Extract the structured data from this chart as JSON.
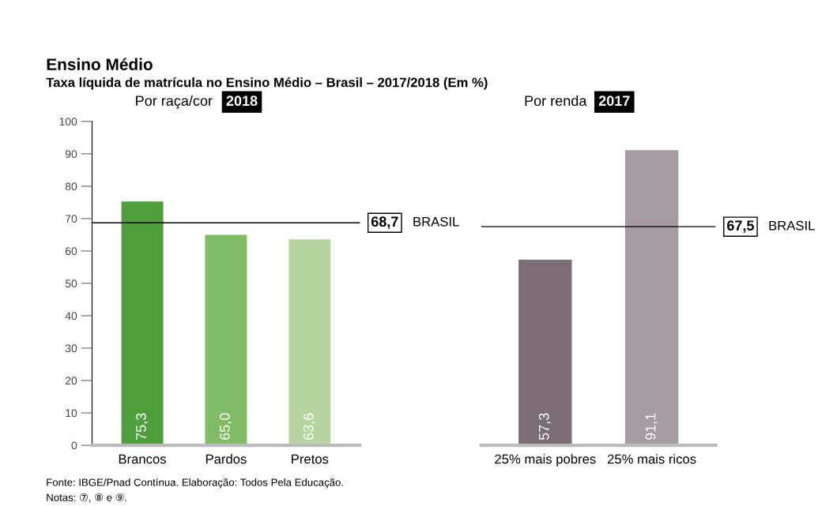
{
  "chart_data": [
    {
      "type": "bar",
      "title": "Ensino Médio",
      "subtitle": "Taxa líquida de matrícula no Ensino Médio – Brasil – 2017/2018 (Em %)",
      "categories": [
        "Brancos",
        "Pardos",
        "Pretos"
      ],
      "values": [
        75.3,
        65.0,
        63.6
      ],
      "colors": [
        "#4f9e3c",
        "#80bb66",
        "#b4d59f"
      ],
      "value_labels": [
        "75,3",
        "65,0",
        "63,6"
      ],
      "ylim": [
        0,
        100
      ],
      "yticks": [
        0,
        10,
        20,
        30,
        40,
        50,
        60,
        70,
        80,
        90,
        100
      ],
      "grid": false,
      "ref_lines": [
        {
          "axis": "y",
          "value": 68.7,
          "label": "68,7",
          "color": "#000000"
        }
      ],
      "annotations": [
        "Por raça/cor",
        "2018",
        "BRASIL",
        "Fonte: IBGE/Pnad Contínua. Elaboração: Todos Pela Educação.",
        "Notas: ⑦, ⑧ e ⑨."
      ]
    },
    {
      "type": "bar",
      "categories": [
        "25% mais pobres",
        "25% mais ricos"
      ],
      "values": [
        57.3,
        91.1
      ],
      "colors": [
        "#7a6e74",
        "#a59ca2"
      ],
      "value_labels": [
        "57,3",
        "91,1"
      ],
      "ylim": [
        0,
        100
      ],
      "tick_labels": "x",
      "grid": false,
      "ref_lines": [
        {
          "axis": "y",
          "value": 67.5,
          "label": "67,5",
          "color": "#000000"
        }
      ],
      "annotations": [
        "Por renda",
        "2017",
        "BRASIL"
      ]
    }
  ]
}
